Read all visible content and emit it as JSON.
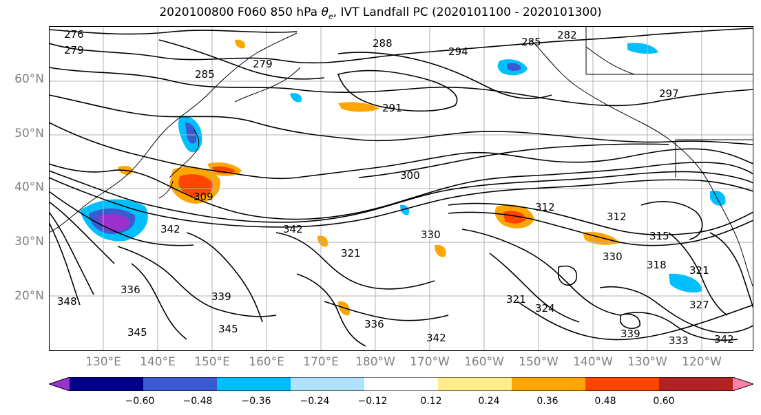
{
  "title": "2020100800 F060 850 hPa θₑ, IVT Landfall PC (2020101100 - 2020101300)",
  "title_parts": {
    "lead": "2020100800 F060 850 hPa ",
    "theta": "θ",
    "sub": "e",
    "rest": ", IVT Landfall PC (2020101100 - 2020101300)"
  },
  "lat_labels": [
    "60°N",
    "50°N",
    "40°N",
    "30°N",
    "20°N"
  ],
  "lon_labels": [
    "130°E",
    "140°E",
    "150°E",
    "160°E",
    "170°E",
    "180°W",
    "170°W",
    "160°W",
    "150°W",
    "140°W",
    "130°W",
    "120°W"
  ],
  "contour_labels": [
    {
      "text": "276"
    },
    {
      "text": "279"
    },
    {
      "text": "285"
    },
    {
      "text": "279"
    },
    {
      "text": "288"
    },
    {
      "text": "294"
    },
    {
      "text": "282"
    },
    {
      "text": "285"
    },
    {
      "text": "291"
    },
    {
      "text": "297"
    },
    {
      "text": "300"
    },
    {
      "text": "309"
    },
    {
      "text": "312"
    },
    {
      "text": "312"
    },
    {
      "text": "315"
    },
    {
      "text": "342"
    },
    {
      "text": "330"
    },
    {
      "text": "321"
    },
    {
      "text": "318"
    },
    {
      "text": "321"
    },
    {
      "text": "330"
    },
    {
      "text": "336"
    },
    {
      "text": "342"
    },
    {
      "text": "339"
    },
    {
      "text": "348"
    },
    {
      "text": "345"
    },
    {
      "text": "345"
    },
    {
      "text": "336"
    },
    {
      "text": "342"
    },
    {
      "text": "321"
    },
    {
      "text": "324"
    },
    {
      "text": "327"
    },
    {
      "text": "333"
    },
    {
      "text": "339"
    },
    {
      "text": "342"
    }
  ],
  "colorbar": {
    "colors": [
      "#9932cc",
      "#00008b",
      "#3a5bd0",
      "#00bfff",
      "#b0e2ff",
      "#ffffff",
      "#ffec8b",
      "#ffa500",
      "#ff4500",
      "#b22222",
      "#ff82ab"
    ],
    "tick_labels": [
      "−0.60",
      "−0.48",
      "−0.36",
      "−0.24",
      "−0.12",
      "0.12",
      "0.24",
      "0.36",
      "0.48",
      "0.60"
    ]
  }
}
